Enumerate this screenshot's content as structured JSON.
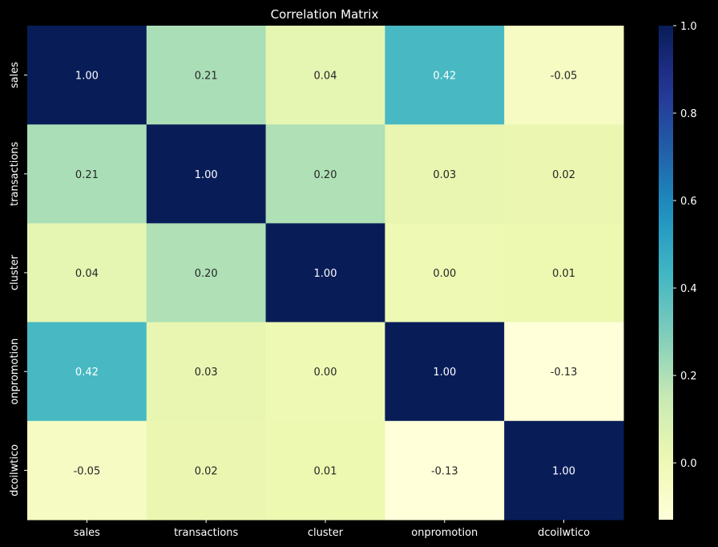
{
  "chart_data": {
    "type": "heatmap",
    "title": "Correlation Matrix",
    "rows": [
      "sales",
      "transactions",
      "cluster",
      "onpromotion",
      "dcoilwtico"
    ],
    "cols": [
      "sales",
      "transactions",
      "cluster",
      "onpromotion",
      "dcoilwtico"
    ],
    "values": [
      [
        1.0,
        0.21,
        0.04,
        0.42,
        -0.05
      ],
      [
        0.21,
        1.0,
        0.2,
        0.03,
        0.02
      ],
      [
        0.04,
        0.2,
        1.0,
        0.0,
        0.01
      ],
      [
        0.42,
        0.03,
        0.0,
        1.0,
        -0.13
      ],
      [
        -0.05,
        0.02,
        0.01,
        -0.13,
        1.0
      ]
    ],
    "value_labels": [
      [
        "1.00",
        "0.21",
        "0.04",
        "0.42",
        "-0.05"
      ],
      [
        "0.21",
        "1.00",
        "0.20",
        "0.03",
        "0.02"
      ],
      [
        "0.04",
        "0.20",
        "1.00",
        "0.00",
        "0.01"
      ],
      [
        "0.42",
        "0.03",
        "0.00",
        "1.00",
        "-0.13"
      ],
      [
        "-0.05",
        "0.02",
        "0.01",
        "-0.13",
        "1.00"
      ]
    ],
    "colormap": "YlGnBu",
    "vmin": -0.13,
    "vmax": 1.0,
    "colorbar_ticks": [
      {
        "value": 0.0,
        "label": "0.0"
      },
      {
        "value": 0.2,
        "label": "0.2"
      },
      {
        "value": 0.4,
        "label": "0.4"
      },
      {
        "value": 0.6,
        "label": "0.6"
      },
      {
        "value": 0.8,
        "label": "0.8"
      },
      {
        "value": 1.0,
        "label": "1.0"
      }
    ],
    "colors": {
      "background": "#000000",
      "text": "#ffffff"
    }
  }
}
